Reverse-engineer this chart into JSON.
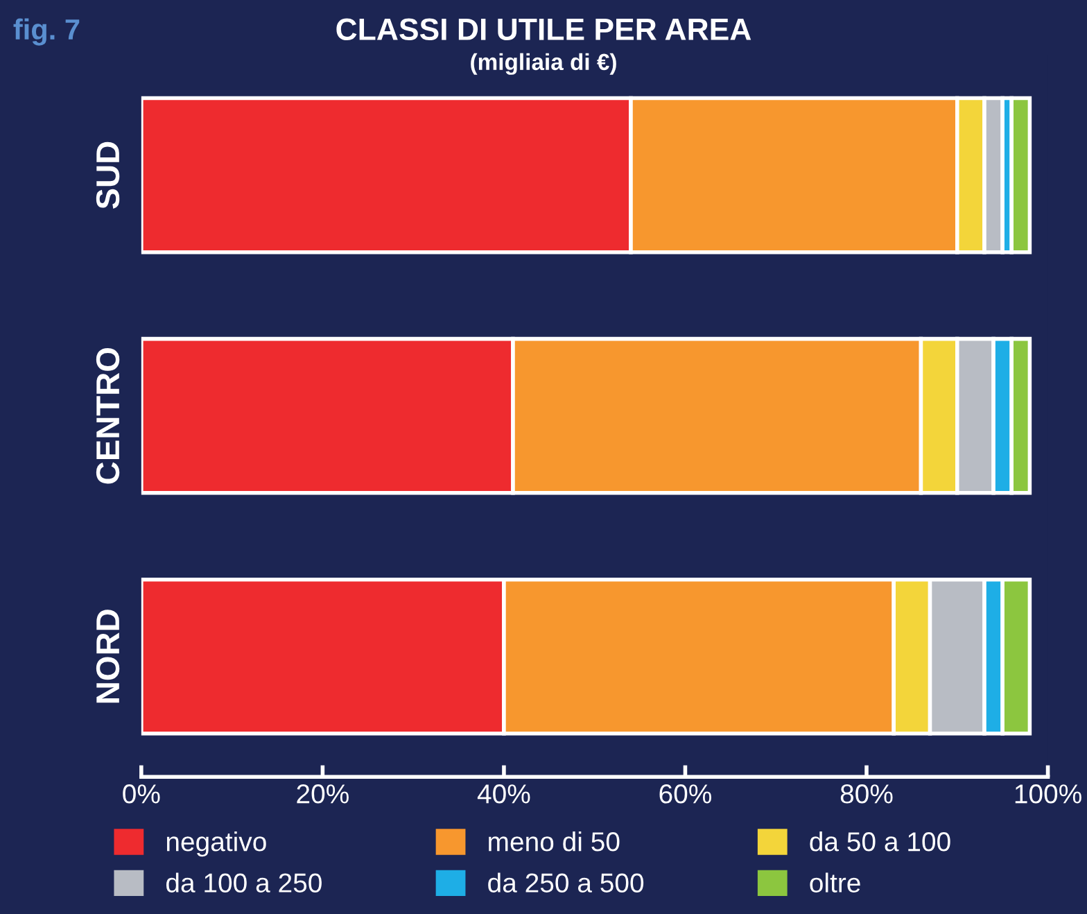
{
  "chart_data": {
    "type": "bar",
    "orientation": "horizontal",
    "stacked": true,
    "title": "CLASSI DI UTILE PER AREA",
    "subtitle": "(migliaia di €)",
    "annotations": [
      "fig. 7"
    ],
    "categories": [
      "SUD",
      "CENTRO",
      "NORD"
    ],
    "series": [
      {
        "name": "negativo",
        "color": "#ee2b2f",
        "values": [
          54,
          41,
          40
        ]
      },
      {
        "name": "meno di 50",
        "color": "#f7972e",
        "values": [
          36,
          45,
          43
        ]
      },
      {
        "name": "da 50 a 100",
        "color": "#f3d53a",
        "values": [
          3,
          4,
          4
        ]
      },
      {
        "name": "da 100 a 250",
        "color": "#b8bcc4",
        "values": [
          2,
          4,
          6
        ]
      },
      {
        "name": "da 250 a 500",
        "color": "#1eaee6",
        "values": [
          1,
          2,
          2
        ]
      },
      {
        "name": "oltre",
        "color": "#8cc63f",
        "values": [
          2,
          2,
          3
        ]
      }
    ],
    "xlim": [
      0,
      100
    ],
    "xticks": [
      {
        "value": 0,
        "label": "0%"
      },
      {
        "value": 20,
        "label": "20%"
      },
      {
        "value": 40,
        "label": "40%"
      },
      {
        "value": 60,
        "label": "60%"
      },
      {
        "value": 80,
        "label": "80%"
      },
      {
        "value": 100,
        "label": "100%"
      }
    ],
    "legend": "bottom",
    "grid": false
  }
}
